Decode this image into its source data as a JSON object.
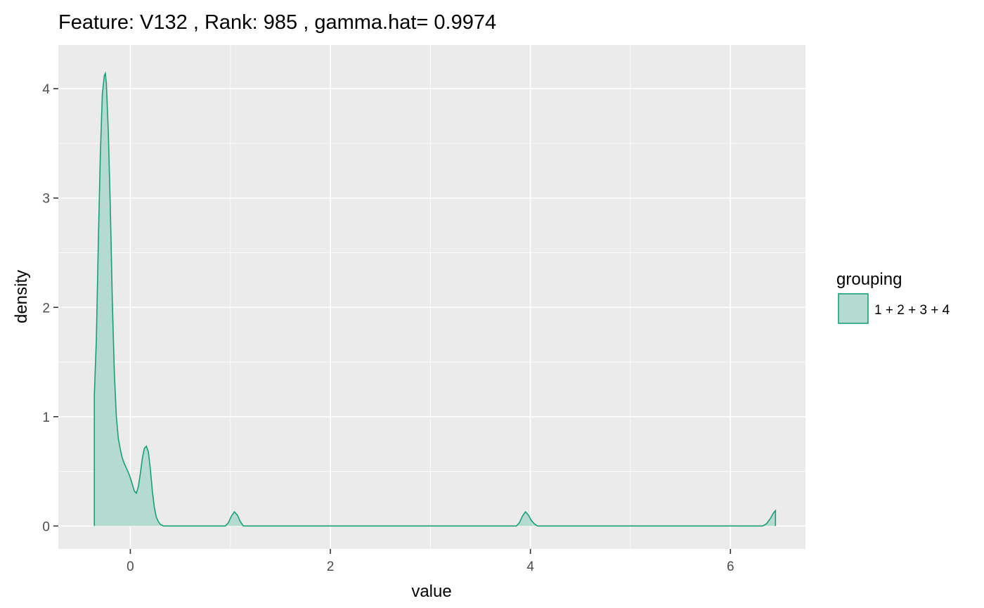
{
  "chart_data": {
    "type": "area",
    "title": "Feature: V132 , Rank: 985 , gamma.hat= 0.9974",
    "xlabel": "value",
    "ylabel": "density",
    "xlim": [
      -0.72,
      6.75
    ],
    "ylim": [
      -0.21,
      4.4
    ],
    "x_ticks": [
      0,
      2,
      4,
      6
    ],
    "x_tick_labels": [
      "0",
      "2",
      "4",
      "6"
    ],
    "y_ticks": [
      0,
      1,
      2,
      3,
      4
    ],
    "y_tick_labels": [
      "0",
      "1",
      "2",
      "3",
      "4"
    ],
    "grid": true,
    "legend": {
      "title": "grouping",
      "position": "right"
    },
    "series": [
      {
        "name": "1 + 2 + 3 + 4",
        "stroke": "#1b9e77",
        "fill": "#b5dbd0",
        "x": [
          -0.36,
          -0.36,
          -0.34,
          -0.32,
          -0.3,
          -0.28,
          -0.26,
          -0.25,
          -0.24,
          -0.22,
          -0.2,
          -0.18,
          -0.16,
          -0.14,
          -0.12,
          -0.1,
          -0.08,
          -0.06,
          -0.04,
          -0.02,
          0.0,
          0.02,
          0.04,
          0.06,
          0.08,
          0.1,
          0.12,
          0.14,
          0.16,
          0.18,
          0.2,
          0.22,
          0.24,
          0.26,
          0.28,
          0.3,
          0.33,
          0.36,
          0.95,
          0.98,
          1.01,
          1.04,
          1.07,
          1.1,
          1.13,
          3.86,
          3.89,
          3.92,
          3.95,
          3.98,
          4.01,
          4.04,
          4.07,
          4.1,
          6.32,
          6.36,
          6.4,
          6.43,
          6.45,
          6.45
        ],
        "y": [
          0.0,
          1.2,
          1.7,
          2.6,
          3.4,
          3.95,
          4.12,
          4.14,
          4.05,
          3.6,
          2.9,
          2.05,
          1.4,
          1.0,
          0.8,
          0.7,
          0.62,
          0.57,
          0.53,
          0.49,
          0.44,
          0.38,
          0.32,
          0.3,
          0.36,
          0.48,
          0.62,
          0.71,
          0.73,
          0.68,
          0.52,
          0.32,
          0.17,
          0.08,
          0.04,
          0.015,
          0.0,
          0.0,
          0.0,
          0.03,
          0.09,
          0.13,
          0.1,
          0.04,
          0.0,
          0.0,
          0.03,
          0.09,
          0.13,
          0.1,
          0.05,
          0.02,
          0.0,
          0.0,
          0.0,
          0.02,
          0.07,
          0.12,
          0.14,
          0.0
        ]
      }
    ]
  }
}
